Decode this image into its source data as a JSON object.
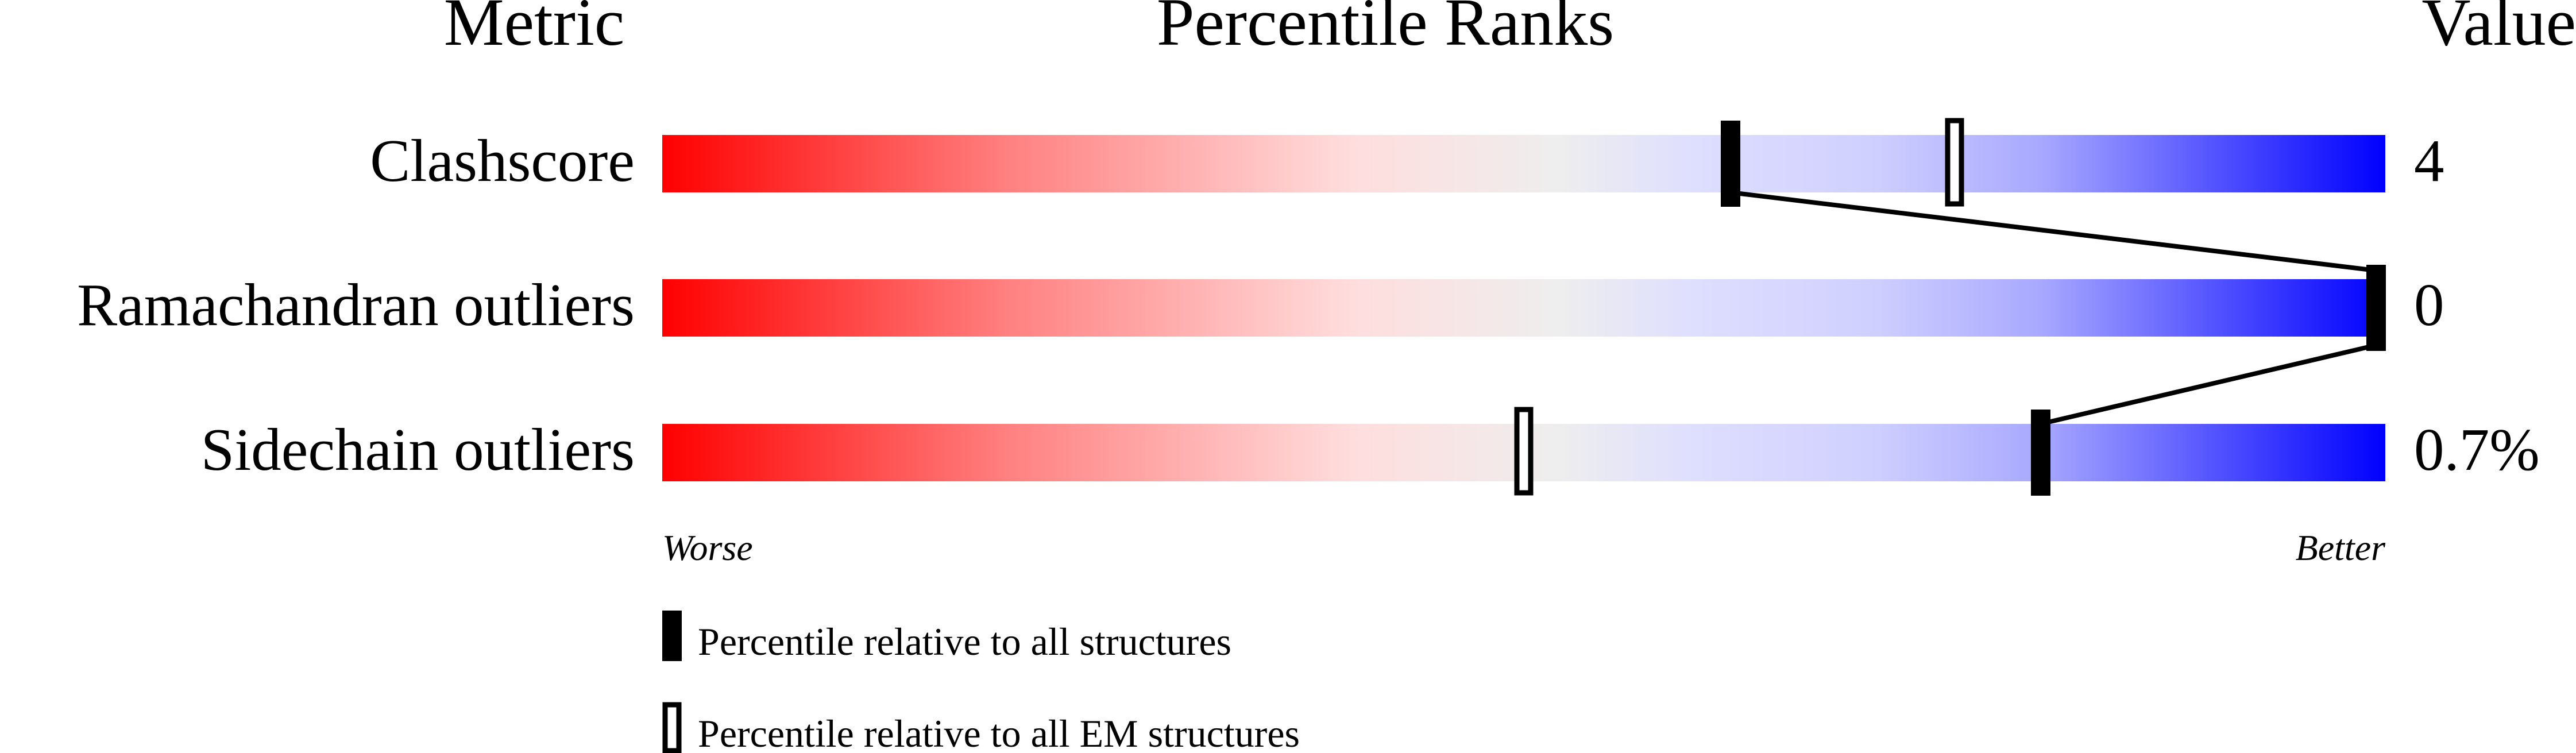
{
  "chart_data": {
    "type": "percentile-slider",
    "headers": {
      "metric": "Metric",
      "ranks": "Percentile Ranks",
      "value": "Value"
    },
    "axis": {
      "left_label": "Worse",
      "right_label": "Better",
      "range": [
        0,
        100
      ]
    },
    "rows": [
      {
        "metric": "Clashscore",
        "value": "4",
        "percentile_all": 62,
        "percentile_em": 75
      },
      {
        "metric": "Ramachandran outliers",
        "value": "0",
        "percentile_all": 100,
        "percentile_em": 100
      },
      {
        "metric": "Sidechain outliers",
        "value": "0.7%",
        "percentile_all": 80,
        "percentile_em": 50
      }
    ],
    "legend": [
      {
        "marker": "filled",
        "label": "Percentile relative to all structures"
      },
      {
        "marker": "open",
        "label": "Percentile relative to all EM structures"
      }
    ],
    "colors": {
      "worse": "#ff0000",
      "neutral": "#eeeeee",
      "better": "#0000ff",
      "marker": "#000000"
    }
  }
}
